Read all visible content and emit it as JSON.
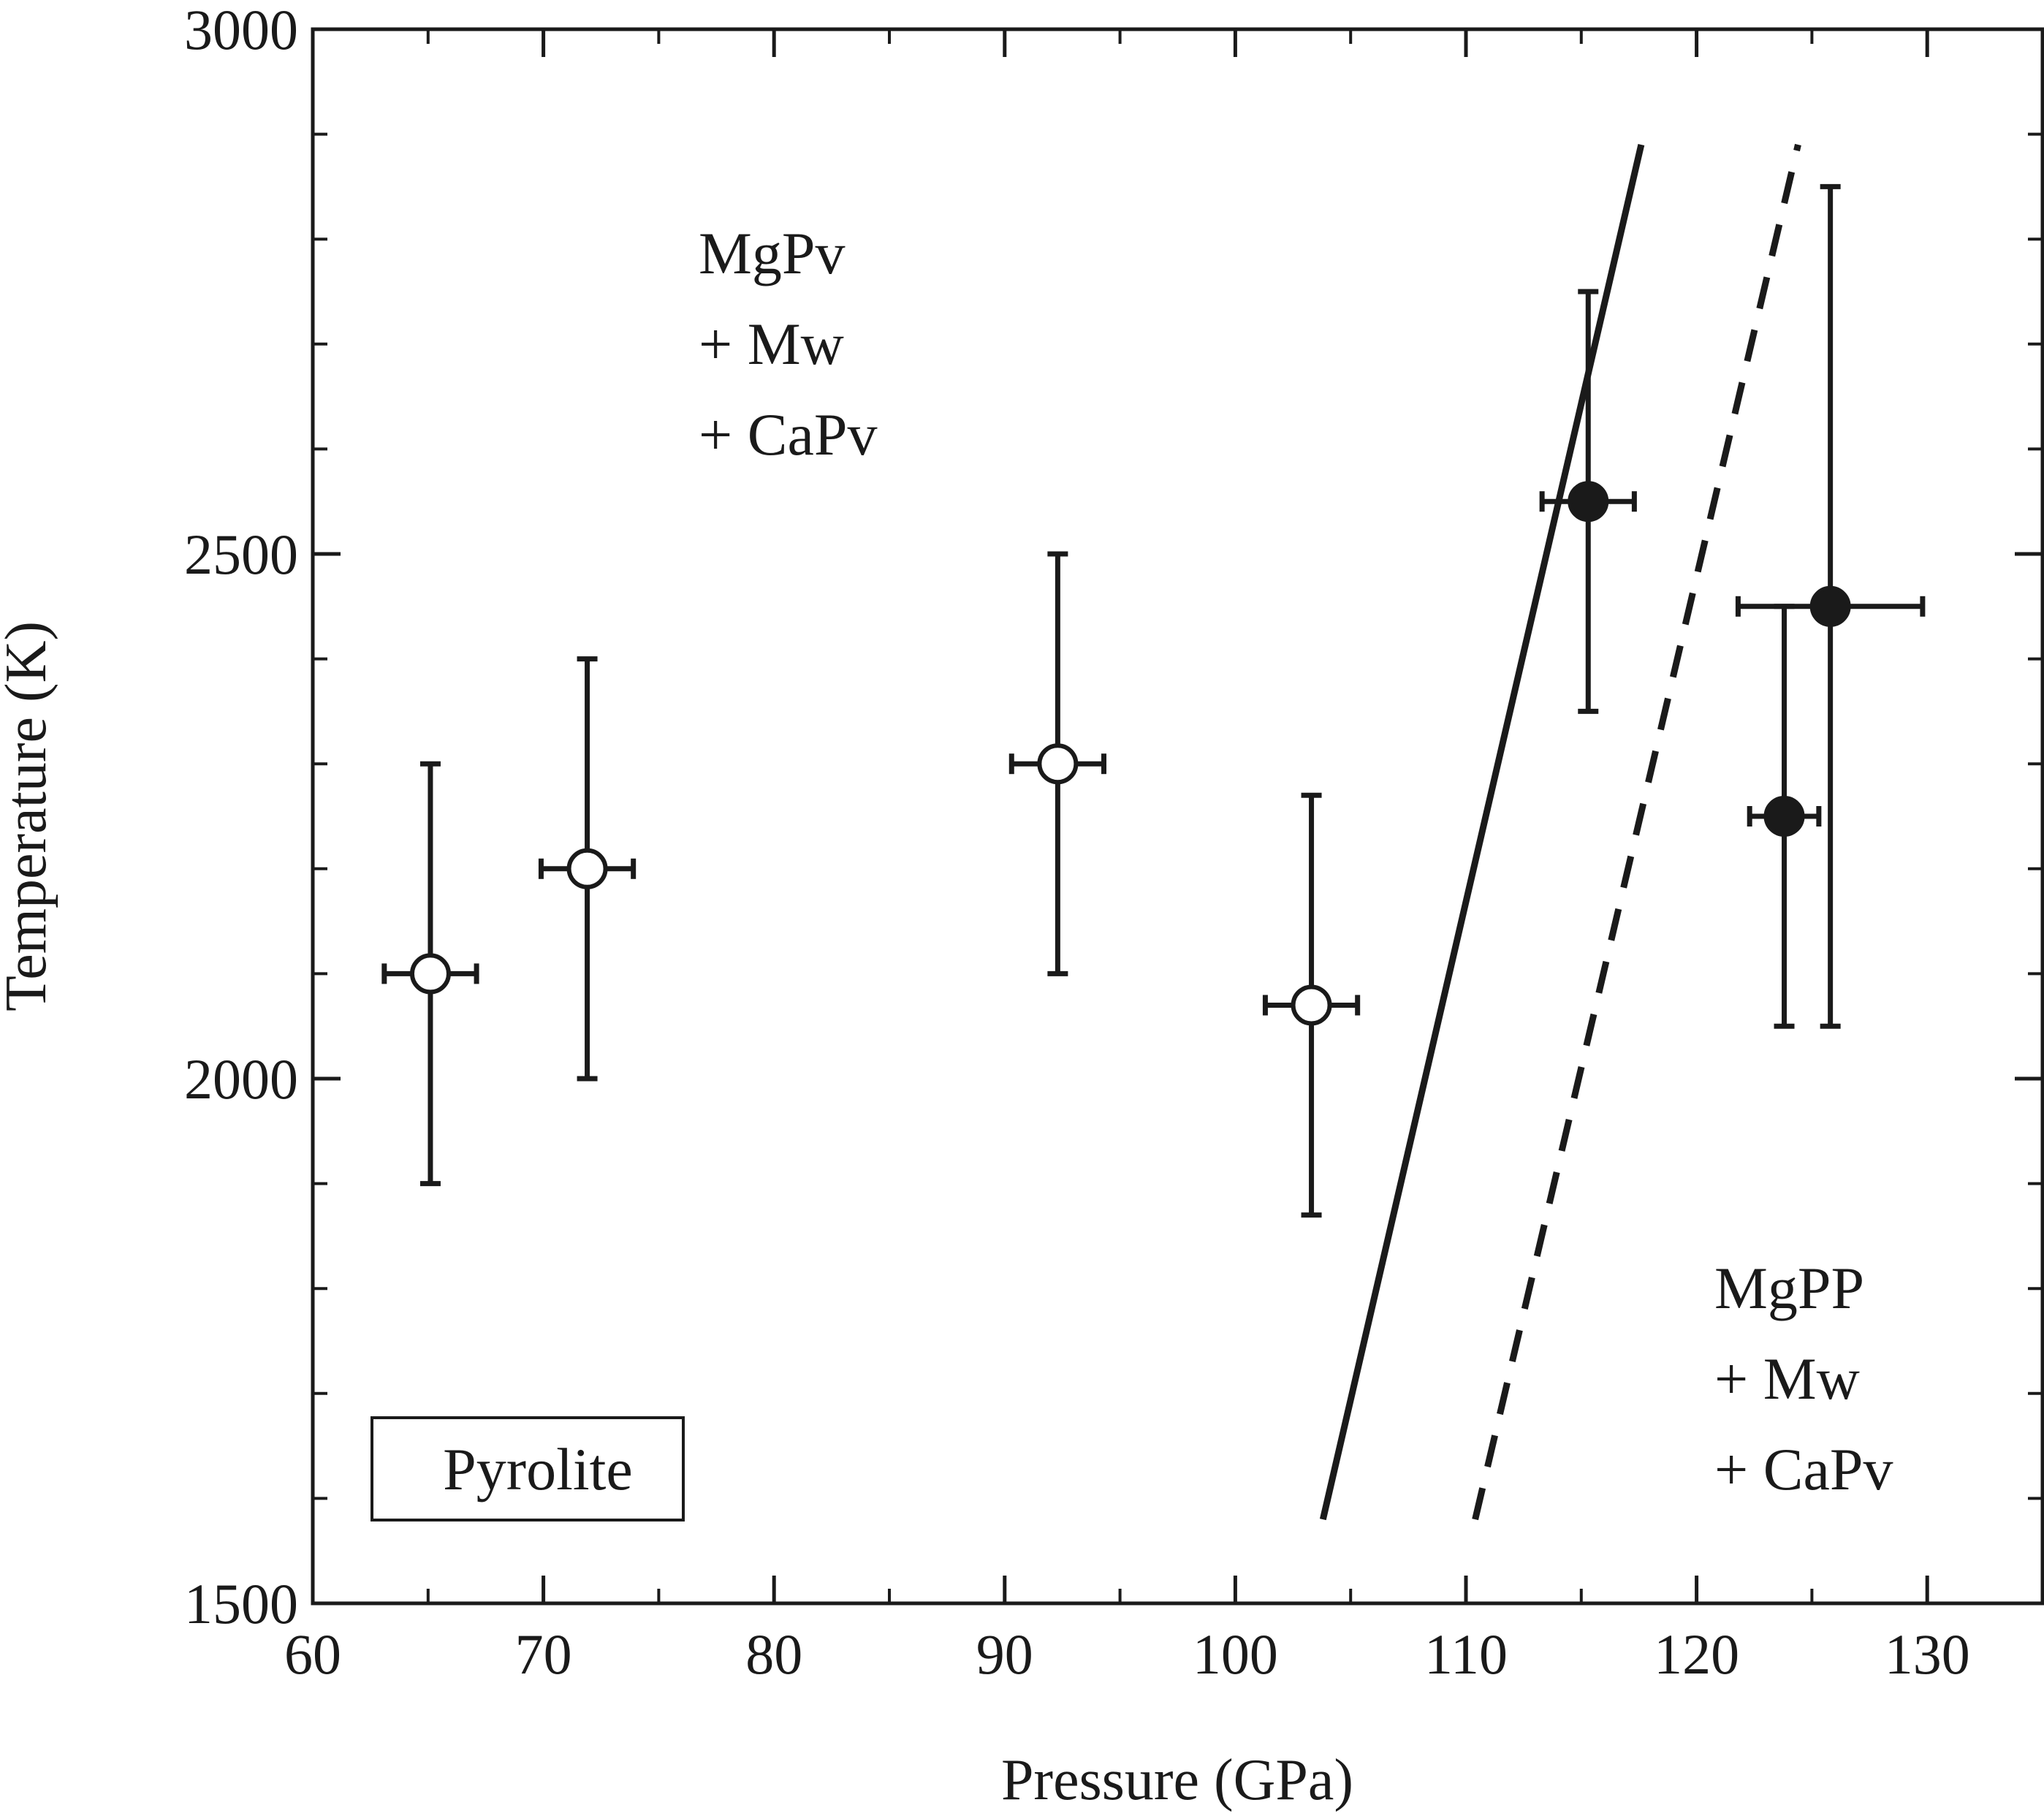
{
  "chart_data": {
    "type": "scatter",
    "title": "",
    "xlabel": "Pressure (GPa)",
    "ylabel": "Temperature (K)",
    "xlim": [
      60,
      135
    ],
    "ylim": [
      1500,
      3000
    ],
    "x_ticks": [
      "60",
      "70",
      "80",
      "90",
      "100",
      "110",
      "120",
      "130"
    ],
    "y_ticks": [
      "1500",
      "2000",
      "2500",
      "3000"
    ],
    "grid": false,
    "legend_box": "Pyrolite",
    "annotations": [
      {
        "lines": [
          "MgPv",
          "+ Mw",
          "+ CaPv"
        ],
        "x": 85.5,
        "y": 2780
      },
      {
        "lines": [
          "MgPP",
          "+ Mw",
          "+ CaPv"
        ],
        "x": 132,
        "y": 1670
      }
    ],
    "series": [
      {
        "marker": "open-circle",
        "points": [
          {
            "x": 65.1,
            "y": 2100,
            "xerr": 2.0,
            "yerr": 200
          },
          {
            "x": 71.9,
            "y": 2200,
            "xerr": 2.0,
            "yerr": 200
          },
          {
            "x": 92.3,
            "y": 2300,
            "xerr": 2.0,
            "yerr": 200
          },
          {
            "x": 103.3,
            "y": 2070,
            "xerr": 2.0,
            "yerr": 200
          }
        ]
      },
      {
        "marker": "filled-circle",
        "points": [
          {
            "x": 115.3,
            "y": 2550,
            "xerr": 2.0,
            "yerr": 200
          },
          {
            "x": 125.8,
            "y": 2450,
            "xerr": 4.0,
            "yerr": 400
          },
          {
            "x": 123.8,
            "y": 2250,
            "xerr": 1.5,
            "yerr": 200
          }
        ]
      }
    ],
    "lines": [
      {
        "style": "solid",
        "points": [
          [
            103.8,
            1580
          ],
          [
            117.6,
            2890
          ]
        ]
      },
      {
        "style": "dashed",
        "points": [
          [
            110.4,
            1580
          ],
          [
            124.4,
            2890
          ]
        ]
      }
    ],
    "colors": {
      "ink": "#1a1a1a",
      "open_fill": "#ffffff"
    }
  }
}
